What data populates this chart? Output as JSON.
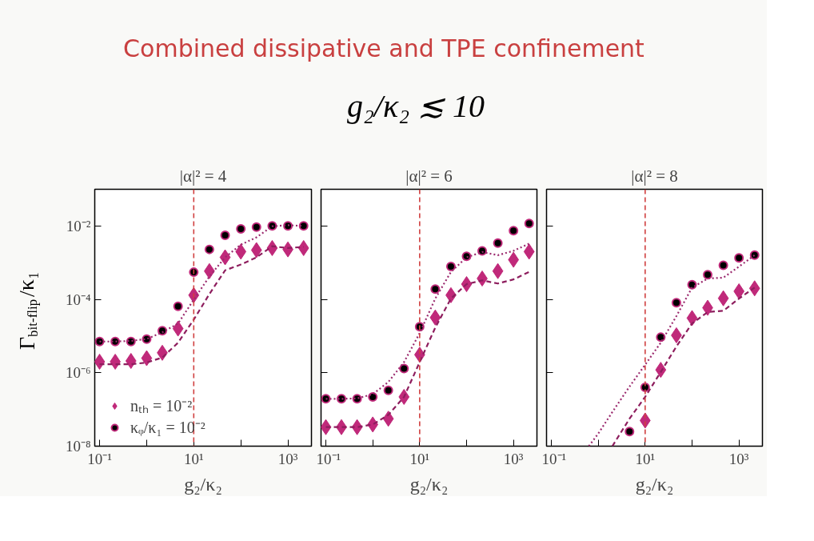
{
  "chart_data": [
    {
      "type": "scatter",
      "title": "|α|² = 4",
      "xlabel": "g₂/κ₂",
      "ylabel": "Γ$_{bit-flip}$/κ₁",
      "annotations": [
        "Combined dissipative and TPE confinement",
        "g₂/κ₂ ≲ 10"
      ],
      "x": [
        0.1,
        0.215,
        0.464,
        1,
        2.15,
        4.64,
        10,
        21.5,
        46.4,
        100,
        215,
        464,
        1000,
        2154
      ],
      "xlim": [
        0.079,
        3160
      ],
      "ylim": [
        1e-08,
        0.1
      ],
      "log": "xy",
      "grid": false,
      "legend": "bottom left",
      "xticks": [
        {
          "value": 0.1,
          "label": "10⁻¹"
        },
        {
          "value": 1,
          "label": null
        },
        {
          "value": 10,
          "label": "10¹"
        },
        {
          "value": 100,
          "label": null
        },
        {
          "value": 1000,
          "label": "10³"
        }
      ],
      "yticks": [
        {
          "value": 1e-08,
          "label": "10⁻⁸"
        },
        {
          "value": 1e-06,
          "label": "10⁻⁶"
        },
        {
          "value": 0.0001,
          "label": "10⁻⁴"
        },
        {
          "value": 0.01,
          "label": "10⁻²"
        }
      ],
      "ref_lines": [
        {
          "axis": "x",
          "value": 10,
          "color": "#d04040",
          "line_style": "dashed"
        }
      ],
      "series": [
        {
          "name": "nₜₕ = 10⁻²",
          "marker": "diamond",
          "color": "#c0297a",
          "values": [
            2e-06,
            2e-06,
            2.1e-06,
            2.5e-06,
            3.5e-06,
            1.6e-05,
            0.00013,
            0.00059,
            0.0014,
            0.002,
            0.0022,
            0.0025,
            0.0023,
            0.0025
          ]
        },
        {
          "name": "κᵩ/κ₁ = 10⁻²",
          "marker": "circle",
          "color": "#000000",
          "values": [
            7.1e-06,
            7.1e-06,
            7.1e-06,
            8.3e-06,
            1.4e-05,
            6.5e-05,
            0.00055,
            0.0023,
            0.0056,
            0.0083,
            0.0093,
            0.01,
            0.01,
            0.01
          ]
        },
        {
          "type": "line",
          "line_style": "dotted",
          "color": "#9b2a6e",
          "values": [
            7.1e-06,
            7.1e-06,
            7.4e-06,
            8.3e-06,
            1.26e-05,
            2.2e-05,
            9.8e-05,
            0.00042,
            0.0014,
            0.0031,
            0.0049,
            0.0098,
            0.0105,
            0.01
          ]
        },
        {
          "type": "line",
          "line_style": "dashed",
          "color": "#8e1e5e",
          "values": [
            1.7e-06,
            1.7e-06,
            1.7e-06,
            1.9e-06,
            2.6e-06,
            6.6e-06,
            2.8e-05,
            0.00014,
            0.00062,
            0.00089,
            0.0014,
            0.0028,
            0.0025,
            0.0027
          ]
        }
      ]
    },
    {
      "type": "scatter",
      "title": "|α|² = 6",
      "xlabel": "g₂/κ₂",
      "x": [
        0.1,
        0.215,
        0.464,
        1,
        2.15,
        4.64,
        10,
        21.5,
        46.4,
        100,
        215,
        464,
        1000,
        2154
      ],
      "xlim": [
        0.079,
        3160
      ],
      "ylim": [
        1e-08,
        0.1
      ],
      "log": "xy",
      "grid": false,
      "tick_labels": "x",
      "xticks": [
        {
          "value": 0.1,
          "label": "10⁻¹"
        },
        {
          "value": 1,
          "label": null
        },
        {
          "value": 10,
          "label": "10¹"
        },
        {
          "value": 100,
          "label": null
        },
        {
          "value": 1000,
          "label": "10³"
        }
      ],
      "yticks": [
        1e-08,
        1e-06,
        0.0001,
        0.01
      ],
      "ref_lines": [
        {
          "axis": "x",
          "value": 10,
          "color": "#d04040",
          "line_style": "dashed"
        }
      ],
      "series": [
        {
          "marker": "diamond",
          "color": "#c0297a",
          "values": [
            3.3e-08,
            3.3e-08,
            3.3e-08,
            3.9e-08,
            5.6e-08,
            2.2e-07,
            3.1e-06,
            3.2e-05,
            0.00013,
            0.00026,
            0.00037,
            0.00059,
            0.0012,
            0.002
          ]
        },
        {
          "marker": "circle",
          "color": "#000000",
          "values": [
            1.95e-07,
            1.95e-07,
            1.95e-07,
            2.2e-07,
            3.3e-07,
            1.3e-06,
            1.8e-05,
            0.00019,
            0.00079,
            0.0015,
            0.0021,
            0.0034,
            0.0074,
            0.0117
          ]
        },
        {
          "type": "line",
          "line_style": "dotted",
          "color": "#9b2a6e",
          "values": [
            1.95e-07,
            1.95e-07,
            2e-07,
            2.6e-07,
            5.6e-07,
            1.95e-06,
            1.2e-05,
            0.000105,
            0.00056,
            0.0014,
            0.00195,
            0.0016,
            0.0021,
            0.0033
          ]
        },
        {
          "type": "line",
          "line_style": "dashed",
          "color": "#8e1e5e",
          "values": [
            3.3e-08,
            3.3e-08,
            3.3e-08,
            3.9e-08,
            7.1e-08,
            2.2e-07,
            1.95e-06,
            1.7e-05,
            0.000105,
            0.00026,
            0.00033,
            0.00027,
            0.00035,
            0.00056
          ]
        }
      ]
    },
    {
      "type": "scatter",
      "title": "|α|² = 8",
      "xlabel": "g₂/κ₂",
      "xlim": [
        0.079,
        3160
      ],
      "ylim": [
        1e-08,
        0.1
      ],
      "log": "xy",
      "grid": false,
      "tick_labels": "x",
      "xticks": [
        {
          "value": 0.1,
          "label": "10⁻¹"
        },
        {
          "value": 1,
          "label": null
        },
        {
          "value": 10,
          "label": "10¹"
        },
        {
          "value": 100,
          "label": null
        },
        {
          "value": 1000,
          "label": "10³"
        }
      ],
      "yticks": [
        1e-08,
        1e-06,
        0.0001,
        0.01
      ],
      "ref_lines": [
        {
          "axis": "x",
          "value": 10,
          "color": "#d04040",
          "line_style": "dashed"
        }
      ],
      "series": [
        {
          "marker": "diamond",
          "color": "#c0297a",
          "x": [
            10,
            21.5,
            46.4,
            100,
            215,
            464,
            1000,
            2154
          ],
          "values": [
            5e-08,
            1.2e-06,
            1.05e-05,
            3.1e-05,
            5.9e-05,
            0.000107,
            0.000166,
            0.0002
          ]
        },
        {
          "marker": "circle",
          "color": "#000000",
          "x": [
            4.64,
            10,
            21.5,
            46.4,
            100,
            215,
            464,
            1000,
            2154
          ],
          "values": [
            2.5e-08,
            4e-07,
            9.3e-06,
            8.1e-05,
            0.00025,
            0.00047,
            0.00085,
            0.00135,
            0.0016
          ]
        },
        {
          "type": "line",
          "line_style": "dotted",
          "color": "#9b2a6e",
          "x": [
            0.63,
            1,
            2.15,
            4.64,
            10,
            21.5,
            46.4,
            100,
            215,
            464,
            1000,
            2154
          ],
          "values": [
            1e-08,
            2.2e-08,
            9.8e-08,
            4.2e-07,
            1.66e-06,
            6.6e-06,
            3.5e-05,
            0.00021,
            0.00037,
            0.00039,
            0.00078,
            0.0016
          ]
        },
        {
          "type": "line",
          "line_style": "dashed",
          "color": "#8e1e5e",
          "x": [
            2.0,
            4.64,
            10,
            21.5,
            46.4,
            100,
            215,
            464,
            1000,
            2154
          ],
          "values": [
            1e-08,
            5.6e-08,
            2.2e-07,
            1.05e-06,
            5.2e-06,
            2.2e-05,
            4.5e-05,
            4.9e-05,
            0.000105,
            0.00021
          ]
        }
      ]
    }
  ]
}
